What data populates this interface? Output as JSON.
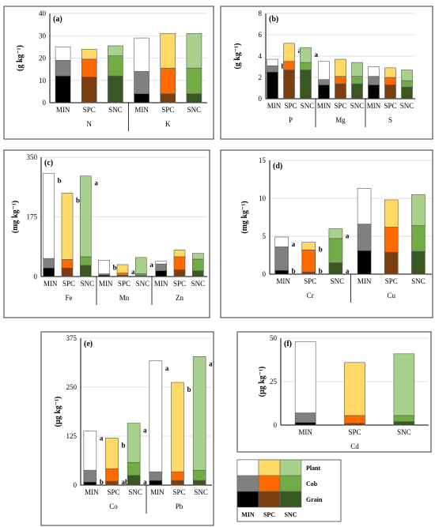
{
  "colors": {
    "MIN": {
      "Grain": "#000000",
      "Cob": "#808080",
      "Plant": "#ffffff"
    },
    "SPC": {
      "Grain": "#7b3f12",
      "Cob": "#ff6a00",
      "Plant": "#ffd966"
    },
    "SNC": {
      "Grain": "#385723",
      "Cob": "#70ad47",
      "Plant": "#a9d18e"
    }
  },
  "legend": {
    "items": [
      "Plant",
      "Cob",
      "Grain"
    ],
    "columns": [
      "MIN",
      "SPC",
      "SNC"
    ]
  },
  "chart_data": [
    {
      "id": "a",
      "label": "(a)",
      "type": "bar",
      "stacked": true,
      "ylabel": "(g  kg⁻¹)",
      "yticks": [
        "0",
        "10",
        "20",
        "30",
        "40"
      ],
      "ylim": [
        0,
        40
      ],
      "groups": [
        {
          "name": "N",
          "bars": [
            {
              "treatment": "MIN",
              "Grain": 12,
              "Cob": 7,
              "Plant": 6
            },
            {
              "treatment": "SPC",
              "Grain": 11.5,
              "Cob": 8,
              "Plant": 4.5
            },
            {
              "treatment": "SNC",
              "Grain": 12,
              "Cob": 9,
              "Plant": 4.5
            }
          ]
        },
        {
          "name": "K",
          "bars": [
            {
              "treatment": "MIN",
              "Grain": 4,
              "Cob": 10,
              "Plant": 15
            },
            {
              "treatment": "SPC",
              "Grain": 4,
              "Cob": 11.5,
              "Plant": 15.5
            },
            {
              "treatment": "SNC",
              "Grain": 4,
              "Cob": 11.5,
              "Plant": 15.5
            }
          ]
        }
      ]
    },
    {
      "id": "b",
      "label": "(b)",
      "type": "bar",
      "stacked": true,
      "ylabel": "(g  kg⁻¹)",
      "yticks": [
        "0",
        "2",
        "4",
        "6",
        "8"
      ],
      "ylim": [
        0,
        8
      ],
      "groups": [
        {
          "name": "P",
          "bars": [
            {
              "treatment": "MIN",
              "Grain": 2.5,
              "Cob": 0.6,
              "Plant": 0.6,
              "sig": "b"
            },
            {
              "treatment": "SPC",
              "Grain": 2.7,
              "Cob": 0.8,
              "Plant": 1.7,
              "sig": "a"
            },
            {
              "treatment": "SNC",
              "Grain": 2.7,
              "Cob": 0.7,
              "Plant": 1.4,
              "sig": "a"
            }
          ]
        },
        {
          "name": "Mg",
          "bars": [
            {
              "treatment": "MIN",
              "Grain": 1.3,
              "Cob": 0.5,
              "Plant": 1.7
            },
            {
              "treatment": "SPC",
              "Grain": 1.4,
              "Cob": 0.7,
              "Plant": 1.6
            },
            {
              "treatment": "SNC",
              "Grain": 1.4,
              "Cob": 0.7,
              "Plant": 1.3
            }
          ]
        },
        {
          "name": "S",
          "bars": [
            {
              "treatment": "MIN",
              "Grain": 1.3,
              "Cob": 0.8,
              "Plant": 0.9
            },
            {
              "treatment": "SPC",
              "Grain": 1.3,
              "Cob": 0.7,
              "Plant": 0.9
            },
            {
              "treatment": "SNC",
              "Grain": 1.1,
              "Cob": 0.6,
              "Plant": 1.0
            }
          ]
        }
      ]
    },
    {
      "id": "c",
      "label": "(c)",
      "type": "bar",
      "stacked": true,
      "ylabel": "(mg  kg⁻¹)",
      "yticks": [
        "0",
        "175",
        "350"
      ],
      "ylim": [
        0,
        350
      ],
      "groups": [
        {
          "name": "Fe",
          "bars": [
            {
              "treatment": "MIN",
              "Grain": 25,
              "Cob": 28,
              "Plant": 250,
              "sig": "b"
            },
            {
              "treatment": "SPC",
              "Grain": 25,
              "Cob": 25,
              "Plant": 195,
              "sig": "b"
            },
            {
              "treatment": "SNC",
              "Grain": 33,
              "Cob": 25,
              "Plant": 237,
              "sig": "a"
            }
          ]
        },
        {
          "name": "Mn",
          "bars": [
            {
              "treatment": "MIN",
              "Grain": 4,
              "Cob": 4,
              "Plant": 40,
              "sig": "b"
            },
            {
              "treatment": "SPC",
              "Grain": 4,
              "Cob": 6,
              "Plant": 25,
              "sig": "a"
            },
            {
              "treatment": "SNC",
              "Grain": 3,
              "Cob": 5,
              "Plant": 48,
              "sig": "a"
            }
          ]
        },
        {
          "name": "Zn",
          "bars": [
            {
              "treatment": "MIN",
              "Grain": 17,
              "Cob": 20,
              "Plant": 8
            },
            {
              "treatment": "SPC",
              "Grain": 20,
              "Cob": 38,
              "Plant": 20
            },
            {
              "treatment": "SNC",
              "Grain": 17,
              "Cob": 34,
              "Plant": 17
            }
          ]
        }
      ]
    },
    {
      "id": "d",
      "label": "(d)",
      "type": "bar",
      "stacked": true,
      "ylabel": "(mg  kg⁻¹)",
      "yticks": [
        "0",
        "5",
        "10",
        "15"
      ],
      "ylim": [
        0,
        15
      ],
      "groups": [
        {
          "name": "Cr",
          "bars": [
            {
              "treatment": "MIN",
              "Grain": 0.5,
              "Cob": 3.1,
              "Plant": 1.3,
              "sig": "a",
              "sig2": "b"
            },
            {
              "treatment": "SPC",
              "Grain": 0.3,
              "Cob": 2.9,
              "Plant": 1.0,
              "sig": "b",
              "sig2": "b"
            },
            {
              "treatment": "SNC",
              "Grain": 1.5,
              "Cob": 3.2,
              "Plant": 1.3,
              "sig": "a",
              "sig2": "a"
            }
          ]
        },
        {
          "name": "Cu",
          "bars": [
            {
              "treatment": "MIN",
              "Grain": 3.1,
              "Cob": 3.5,
              "Plant": 4.7
            },
            {
              "treatment": "SPC",
              "Grain": 2.9,
              "Cob": 3.3,
              "Plant": 3.6
            },
            {
              "treatment": "SNC",
              "Grain": 3.0,
              "Cob": 3.4,
              "Plant": 4.1
            }
          ]
        }
      ]
    },
    {
      "id": "e",
      "label": "(e)",
      "type": "bar",
      "stacked": true,
      "ylabel": "(µg  kg⁻¹)",
      "yticks": [
        "0",
        "125",
        "250",
        "375"
      ],
      "ylim": [
        0,
        375
      ],
      "groups": [
        {
          "name": "Co",
          "bars": [
            {
              "treatment": "MIN",
              "Grain": 8,
              "Cob": 30,
              "Plant": 100,
              "sig": "a",
              "sig2": "b"
            },
            {
              "treatment": "SPC",
              "Grain": 10,
              "Cob": 32,
              "Plant": 78,
              "sig": "b",
              "sig2": "ab"
            },
            {
              "treatment": "SNC",
              "Grain": 25,
              "Cob": 33,
              "Plant": 100,
              "sig": "a",
              "sig2": "a"
            }
          ]
        },
        {
          "name": "Pb",
          "bars": [
            {
              "treatment": "MIN",
              "Grain": 12,
              "Cob": 22,
              "Plant": 283,
              "sig": "a"
            },
            {
              "treatment": "SPC",
              "Grain": 12,
              "Cob": 22,
              "Plant": 228,
              "sig": "b"
            },
            {
              "treatment": "SNC",
              "Grain": 12,
              "Cob": 26,
              "Plant": 290,
              "sig": "a"
            }
          ]
        }
      ]
    },
    {
      "id": "f",
      "label": "(f)",
      "type": "bar",
      "stacked": true,
      "ylabel": "(µg  kg⁻¹)",
      "yticks": [
        "0",
        "25",
        "50"
      ],
      "ylim": [
        0,
        50
      ],
      "groups": [
        {
          "name": "Cd",
          "bars": [
            {
              "treatment": "MIN",
              "Grain": 1.5,
              "Cob": 5.5,
              "Plant": 41
            },
            {
              "treatment": "SPC",
              "Grain": 1,
              "Cob": 4.5,
              "Plant": 30.5
            },
            {
              "treatment": "SNC",
              "Grain": 2,
              "Cob": 3.5,
              "Plant": 35.5
            }
          ]
        }
      ]
    }
  ]
}
